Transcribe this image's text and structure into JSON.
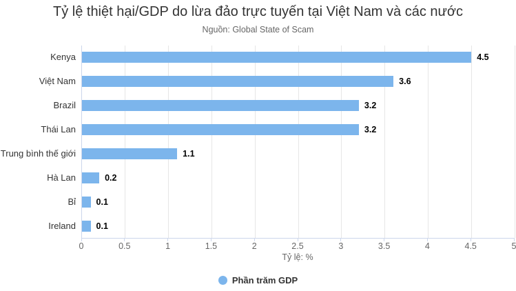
{
  "chart_data": {
    "type": "bar",
    "orientation": "horizontal",
    "title": "Tỷ lệ thiệt hại/GDP do lừa đảo trực tuyến tại Việt Nam và các nước",
    "subtitle": "Nguồn: Global State of Scam",
    "categories": [
      "Kenya",
      "Việt Nam",
      "Brazil",
      "Thái Lan",
      "Trung bình thế giới",
      "Hà Lan",
      "Bỉ",
      "Ireland"
    ],
    "values": [
      4.5,
      3.6,
      3.2,
      3.2,
      1.1,
      0.2,
      0.1,
      0.1
    ],
    "value_labels": [
      "4.5",
      "3.6",
      "3.2",
      "3.2",
      "1.1",
      "0.2",
      "0.1",
      "0.1"
    ],
    "series_name": "Phần trăm GDP",
    "xlabel": "Tỷ lệ: %",
    "ylabel": "",
    "xlim": [
      0,
      5
    ],
    "xticks": [
      0,
      0.5,
      1,
      1.5,
      2,
      2.5,
      3,
      3.5,
      4,
      4.5,
      5
    ],
    "xtick_labels": [
      "0",
      "0.5",
      "1",
      "1.5",
      "2",
      "2.5",
      "3",
      "3.5",
      "4",
      "4.5",
      "5"
    ],
    "grid": true,
    "legend_position": "bottom"
  },
  "colors": {
    "bar": "#7cb5ec",
    "title": "#333333",
    "subtitle": "#666666",
    "category_label": "#333333",
    "tick_label": "#666666",
    "axis_title": "#666666",
    "data_label": "#000000",
    "gridline": "#e6e6e6",
    "axis_line": "#ccd6eb",
    "legend_text": "#333333",
    "background": "#ffffff"
  },
  "icons": {
    "legend_marker": "circle-icon"
  }
}
